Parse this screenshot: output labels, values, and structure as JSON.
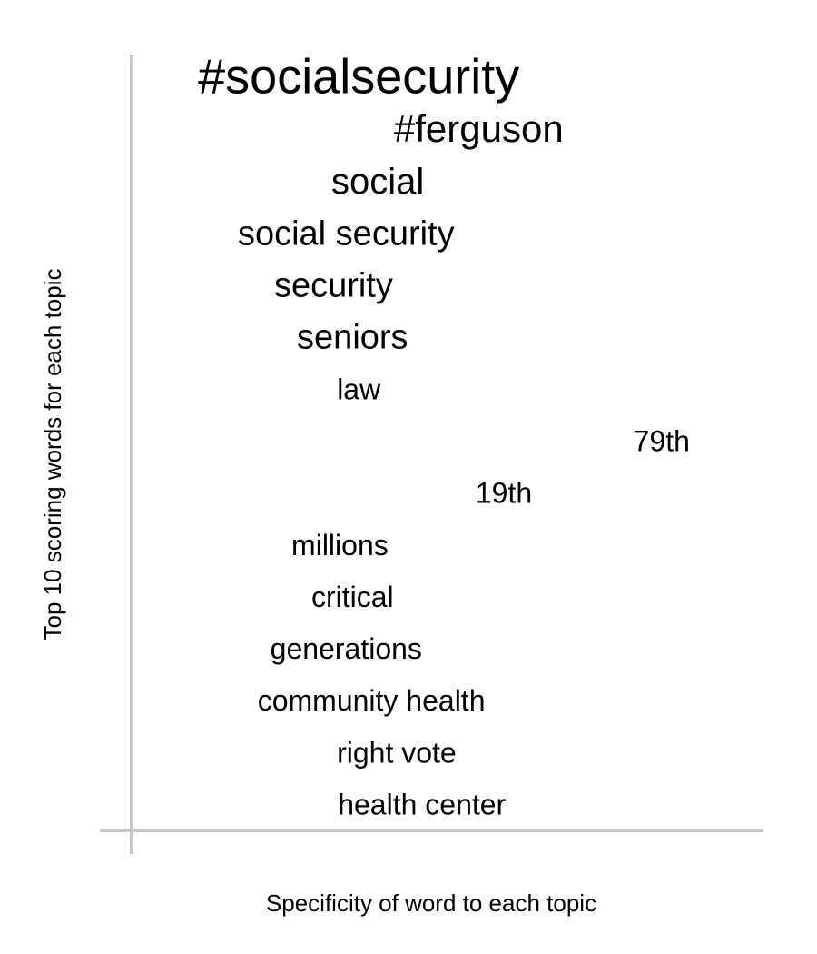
{
  "chart_data": {
    "type": "scatter",
    "xlabel": "Specificity of word to each topic",
    "ylabel": "Top 10 scoring words for each topic",
    "axis_color": "#c8c8c8",
    "text_color": "#000000",
    "x_ticks_shown": false,
    "y_ticks_shown": false,
    "grid": false,
    "legend": "none",
    "words": [
      {
        "text": "#socialsecurity",
        "rank": 1,
        "specificity": 0.36
      },
      {
        "text": "#ferguson",
        "rank": 2,
        "specificity": 0.55
      },
      {
        "text": "social",
        "rank": 3,
        "specificity": 0.39
      },
      {
        "text": "social security",
        "rank": 4,
        "specificity": 0.34
      },
      {
        "text": "security",
        "rank": 5,
        "specificity": 0.32
      },
      {
        "text": "seniors",
        "rank": 6,
        "specificity": 0.35
      },
      {
        "text": "law",
        "rank": 7,
        "specificity": 0.36
      },
      {
        "text": "79th",
        "rank": 8,
        "specificity": 0.84
      },
      {
        "text": "19th",
        "rank": 9,
        "specificity": 0.59
      },
      {
        "text": "millions",
        "rank": 10,
        "specificity": 0.33
      },
      {
        "text": "critical",
        "rank": 11,
        "specificity": 0.35
      },
      {
        "text": "generations",
        "rank": 12,
        "specificity": 0.34
      },
      {
        "text": "community health",
        "rank": 13,
        "specificity": 0.38
      },
      {
        "text": "right vote",
        "rank": 14,
        "specificity": 0.42
      },
      {
        "text": "health center",
        "rank": 15,
        "specificity": 0.46
      }
    ]
  }
}
